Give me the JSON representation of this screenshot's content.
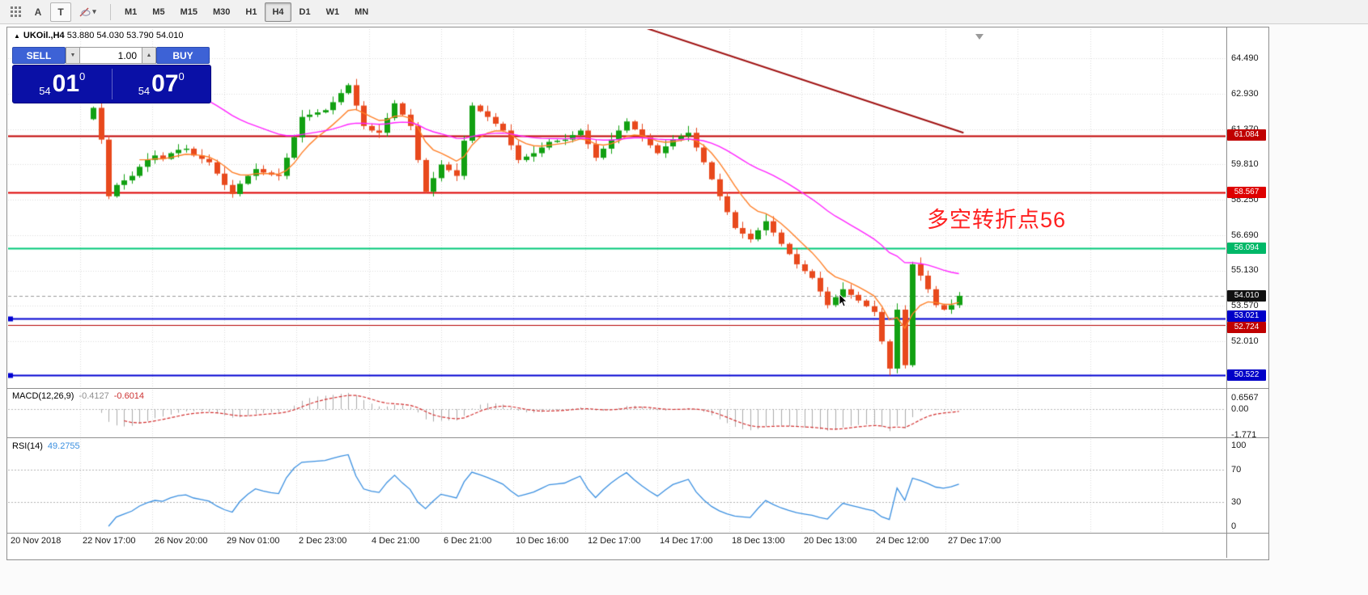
{
  "window": {
    "expand_arrow": "▲",
    "symbol_title": "UKOil.,H4",
    "ohlc_text": "53.880 54.030 53.790 54.010"
  },
  "toolbar": {
    "icons": {
      "a": "A",
      "t": "T",
      "caret": "▾"
    },
    "timeframes": [
      "M1",
      "M5",
      "M15",
      "M30",
      "H1",
      "H4",
      "D1",
      "W1",
      "MN"
    ],
    "active_timeframe": "H4"
  },
  "one_click": {
    "sell_label": "SELL",
    "buy_label": "BUY",
    "volume": "1.00",
    "down_arrow": "▼",
    "up_arrow": "▲",
    "bid": {
      "small": "54",
      "big": "01",
      "sup": "0"
    },
    "ask": {
      "small": "54",
      "big": "07",
      "sup": "0"
    }
  },
  "annotation": {
    "text": "多空转折点56",
    "color": "#FF2020"
  },
  "price_axis": {
    "ticks": [
      "64.490",
      "62.930",
      "61.370",
      "59.810",
      "58.250",
      "56.690",
      "55.130",
      "53.570",
      "52.010"
    ],
    "tags": [
      {
        "text": "61.084",
        "color": "#C00000"
      },
      {
        "text": "58.567",
        "color": "#DE0000"
      },
      {
        "text": "56.094",
        "color": "#00B868"
      },
      {
        "text": "54.010",
        "color": "#101010"
      },
      {
        "text": "53.021",
        "color": "#0000C8"
      },
      {
        "text": "52.724",
        "color": "#C00000"
      },
      {
        "text": "50.522",
        "color": "#0000C8"
      }
    ]
  },
  "time_axis": {
    "labels": [
      "20 Nov 2018",
      "22 Nov 17:00",
      "26 Nov 20:00",
      "29 Nov 01:00",
      "2 Dec 23:00",
      "4 Dec 21:00",
      "6 Dec 21:00",
      "10 Dec 16:00",
      "12 Dec 17:00",
      "14 Dec 17:00",
      "18 Dec 13:00",
      "20 Dec 13:00",
      "24 Dec 12:00",
      "27 Dec 17:00"
    ]
  },
  "macd": {
    "label": "MACD(12,26,9)",
    "value_main": "-0.4127",
    "value_signal": "-0.6014",
    "axis": [
      "0.6567",
      "0.00",
      "-1.771"
    ]
  },
  "rsi": {
    "label": "RSI(14)",
    "value": "49.2755",
    "axis": [
      "100",
      "70",
      "30",
      "0"
    ],
    "levels": [
      70,
      30
    ]
  },
  "chart_data": {
    "type": "candlestick",
    "symbol": "UKOil",
    "timeframe": "H4",
    "ohlc_current": {
      "open": 53.88,
      "high": 54.03,
      "low": 53.79,
      "close": 54.01
    },
    "first_open": 61.8,
    "closes": [
      62.3,
      60.9,
      58.4,
      58.9,
      59.1,
      59.3,
      59.7,
      60.0,
      60.2,
      60.05,
      60.3,
      60.45,
      60.5,
      60.2,
      60.05,
      59.9,
      59.4,
      58.9,
      58.5,
      58.95,
      59.3,
      59.6,
      59.45,
      59.35,
      59.3,
      60.1,
      61.0,
      61.9,
      62.0,
      62.1,
      62.2,
      62.55,
      62.95,
      63.3,
      62.4,
      61.5,
      61.3,
      61.2,
      61.85,
      62.5,
      62.0,
      61.5,
      60.0,
      58.6,
      59.2,
      59.8,
      59.55,
      59.3,
      60.85,
      62.4,
      62.15,
      61.9,
      61.6,
      61.3,
      60.65,
      60.0,
      60.15,
      60.3,
      60.55,
      60.8,
      60.85,
      60.9,
      61.1,
      61.3,
      60.7,
      60.1,
      60.5,
      60.9,
      61.3,
      61.7,
      61.35,
      61.0,
      60.65,
      60.3,
      60.6,
      60.9,
      61.05,
      61.2,
      60.55,
      59.9,
      59.15,
      58.4,
      57.7,
      57.0,
      56.75,
      56.5,
      56.9,
      57.3,
      56.8,
      56.3,
      55.85,
      55.4,
      55.1,
      54.8,
      54.2,
      53.6,
      53.95,
      54.3,
      54.05,
      53.8,
      53.55,
      53.3,
      52.0,
      50.8,
      53.4,
      50.95,
      55.4,
      54.9,
      54.3,
      53.6,
      53.4,
      53.6,
      54.01
    ],
    "low_overrides": {
      "103": 50.5
    },
    "current_price": 54.01,
    "hlines": [
      {
        "price": 61.084,
        "color": "#C00000",
        "width": 2,
        "handle": false
      },
      {
        "price": 58.567,
        "color": "#DE0000",
        "width": 2,
        "handle": false
      },
      {
        "price": 56.094,
        "color": "#00C878",
        "width": 2,
        "handle": false
      },
      {
        "price": 53.021,
        "color": "#0000D2",
        "width": 2,
        "handle": true
      },
      {
        "price": 52.724,
        "color": "#B40000",
        "width": 1,
        "handle": false
      },
      {
        "price": 50.522,
        "color": "#0000D2",
        "width": 2,
        "handle": true
      }
    ],
    "trendline": {
      "i1": 71.7,
      "p1": 65.8,
      "i2": 112.6,
      "p2": 61.2,
      "color": "#A01212"
    },
    "styles": {
      "up_color": "#12A012",
      "down_color": "#E8491D",
      "ma_fast_color": "#FF7F27",
      "ma_slow_color": "#FF22FF",
      "macd_hist_color": "#ABABAB",
      "macd_signal_color": "#D23030",
      "rsi_color": "#3A8FE0",
      "grid_color": "#DCDCDC"
    }
  }
}
